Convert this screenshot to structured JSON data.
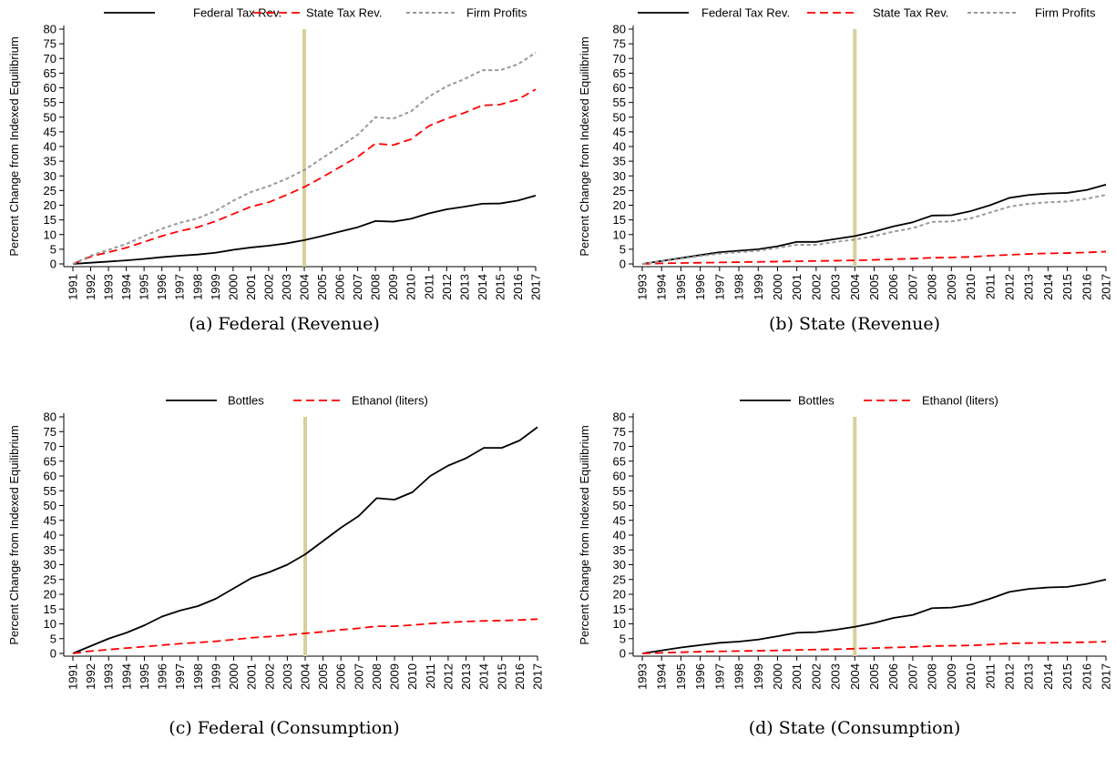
{
  "chart_data": [
    {
      "type": "line",
      "caption": "(a) Federal (Revenue)",
      "ylabel": "Percent Change from Indexed Equilibrium",
      "ylim": [
        0,
        80
      ],
      "yticks": [
        "0",
        "5",
        "10",
        "15",
        "20",
        "25",
        "30",
        "35",
        "40",
        "45",
        "50",
        "55",
        "60",
        "65",
        "70",
        "75",
        "80"
      ],
      "categories": [
        "1991",
        "1992",
        "1993",
        "1994",
        "1995",
        "1996",
        "1997",
        "1998",
        "1999",
        "2000",
        "2001",
        "2002",
        "2003",
        "2004",
        "2005",
        "2006",
        "2007",
        "2008",
        "2009",
        "2010",
        "2011",
        "2012",
        "2013",
        "2014",
        "2015",
        "2016",
        "2017"
      ],
      "vline": "2004",
      "legend_position": "top",
      "grid": false,
      "series": [
        {
          "name": "Federal Tax Rev.",
          "color": "#000000",
          "style": "solid",
          "values": [
            0,
            0.4,
            0.8,
            1.2,
            1.7,
            2.3,
            2.8,
            3.2,
            3.8,
            4.8,
            5.6,
            6.2,
            7.0,
            8.1,
            9.5,
            11.0,
            12.5,
            14.6,
            14.4,
            15.4,
            17.2,
            18.6,
            19.5,
            20.5,
            20.6,
            21.6,
            23.3
          ]
        },
        {
          "name": "State Tax Rev.",
          "color": "#ff0000",
          "style": "dashed",
          "values": [
            0,
            2.5,
            4.0,
            5.5,
            7.5,
            9.5,
            11.2,
            12.5,
            14.5,
            17.0,
            19.5,
            21.0,
            23.5,
            26.2,
            29.5,
            33.0,
            36.5,
            41.0,
            40.5,
            42.5,
            47.0,
            49.5,
            51.5,
            54.0,
            54.3,
            56.0,
            59.5
          ]
        },
        {
          "name": "Firm Profits",
          "color": "#999999",
          "style": "dotted",
          "values": [
            0,
            2.8,
            4.8,
            6.8,
            9.5,
            12.0,
            14.0,
            15.5,
            18.0,
            21.5,
            24.5,
            26.5,
            29.0,
            32.0,
            36.0,
            40.0,
            44.0,
            50.0,
            49.5,
            52.0,
            57.0,
            60.5,
            63.0,
            66.0,
            66.0,
            68.0,
            72.0
          ]
        }
      ]
    },
    {
      "type": "line",
      "caption": "(b) State (Revenue)",
      "ylabel": "Percent Change from Indexed Equilibrium",
      "ylim": [
        0,
        80
      ],
      "yticks": [
        "0",
        "5",
        "10",
        "15",
        "20",
        "25",
        "30",
        "35",
        "40",
        "45",
        "50",
        "55",
        "60",
        "65",
        "70",
        "75",
        "80"
      ],
      "categories": [
        "1993",
        "1994",
        "1995",
        "1996",
        "1997",
        "1998",
        "1999",
        "2000",
        "2001",
        "2002",
        "2003",
        "2004",
        "2005",
        "2006",
        "2007",
        "2008",
        "2009",
        "2010",
        "2011",
        "2012",
        "2013",
        "2014",
        "2015",
        "2016",
        "2017"
      ],
      "vline": "2004",
      "legend_position": "top",
      "grid": false,
      "series": [
        {
          "name": "Federal Tax Rev.",
          "color": "#000000",
          "style": "solid",
          "values": [
            0,
            1.0,
            2.0,
            3.0,
            4.0,
            4.5,
            5.0,
            6.0,
            7.5,
            7.5,
            8.5,
            9.5,
            11.0,
            12.8,
            14.2,
            16.5,
            16.6,
            18.0,
            20.0,
            22.5,
            23.5,
            24.0,
            24.2,
            25.2,
            27.0
          ]
        },
        {
          "name": "State Tax Rev.",
          "color": "#ff0000",
          "style": "dashed",
          "values": [
            0,
            0.2,
            0.3,
            0.4,
            0.5,
            0.6,
            0.7,
            0.8,
            0.9,
            1.0,
            1.1,
            1.2,
            1.4,
            1.6,
            1.8,
            2.1,
            2.2,
            2.4,
            2.8,
            3.1,
            3.4,
            3.6,
            3.7,
            3.9,
            4.2
          ]
        },
        {
          "name": "Firm Profits",
          "color": "#999999",
          "style": "dotted",
          "values": [
            0,
            0.9,
            1.8,
            2.7,
            3.5,
            4.0,
            4.5,
            5.5,
            6.5,
            6.5,
            7.5,
            8.3,
            9.5,
            11.0,
            12.2,
            14.3,
            14.5,
            15.5,
            17.5,
            19.5,
            20.5,
            21.0,
            21.3,
            22.2,
            23.5
          ]
        }
      ]
    },
    {
      "type": "line",
      "caption": "(c) Federal (Consumption)",
      "ylabel": "Percent Change from Indexed Equilibrium",
      "ylim": [
        0,
        80
      ],
      "yticks": [
        "0",
        "5",
        "10",
        "15",
        "20",
        "25",
        "30",
        "35",
        "40",
        "45",
        "50",
        "55",
        "60",
        "65",
        "70",
        "75",
        "80"
      ],
      "categories": [
        "1991",
        "1992",
        "1993",
        "1994",
        "1995",
        "1996",
        "1997",
        "1998",
        "1999",
        "2000",
        "2001",
        "2002",
        "2003",
        "2004",
        "2005",
        "2006",
        "2007",
        "2008",
        "2009",
        "2010",
        "2011",
        "2012",
        "2013",
        "2014",
        "2015",
        "2016",
        "2017"
      ],
      "vline": "2004",
      "legend_position": "top",
      "grid": false,
      "series": [
        {
          "name": "Bottles",
          "color": "#000000",
          "style": "solid",
          "values": [
            0,
            2.5,
            5.0,
            7.0,
            9.5,
            12.5,
            14.5,
            16.0,
            18.5,
            22.0,
            25.5,
            27.5,
            30.0,
            33.5,
            38.0,
            42.5,
            46.5,
            52.5,
            52.0,
            54.5,
            60.0,
            63.5,
            66.0,
            69.5,
            69.5,
            72.0,
            76.5
          ]
        },
        {
          "name": "Ethanol (liters)",
          "color": "#ff0000",
          "style": "dashed",
          "values": [
            0,
            0.8,
            1.3,
            1.8,
            2.3,
            2.8,
            3.3,
            3.7,
            4.1,
            4.7,
            5.3,
            5.7,
            6.2,
            6.8,
            7.3,
            8.0,
            8.5,
            9.2,
            9.2,
            9.6,
            10.1,
            10.5,
            10.8,
            11.0,
            11.1,
            11.3,
            11.6
          ]
        }
      ]
    },
    {
      "type": "line",
      "caption": "(d) State (Consumption)",
      "ylabel": "Percent Change from Indexed Equilibrium",
      "ylim": [
        0,
        80
      ],
      "yticks": [
        "0",
        "5",
        "10",
        "15",
        "20",
        "25",
        "30",
        "35",
        "40",
        "45",
        "50",
        "55",
        "60",
        "65",
        "70",
        "75",
        "80"
      ],
      "categories": [
        "1993",
        "1994",
        "1995",
        "1996",
        "1997",
        "1998",
        "1999",
        "2000",
        "2001",
        "2002",
        "2003",
        "2004",
        "2005",
        "2006",
        "2007",
        "2008",
        "2009",
        "2010",
        "2011",
        "2012",
        "2013",
        "2014",
        "2015",
        "2016",
        "2017"
      ],
      "vline": "2004",
      "legend_position": "top",
      "grid": false,
      "series": [
        {
          "name": "Bottles",
          "color": "#000000",
          "style": "solid",
          "values": [
            0,
            1.0,
            2.0,
            2.8,
            3.6,
            4.0,
            4.7,
            5.8,
            7.0,
            7.2,
            8.0,
            9.0,
            10.3,
            12.0,
            13.0,
            15.3,
            15.5,
            16.5,
            18.5,
            20.8,
            21.8,
            22.3,
            22.5,
            23.5,
            25.0
          ]
        },
        {
          "name": "Ethanol (liters)",
          "color": "#ff0000",
          "style": "dashed",
          "values": [
            0,
            0.2,
            0.4,
            0.6,
            0.7,
            0.8,
            0.9,
            1.0,
            1.2,
            1.3,
            1.4,
            1.6,
            1.8,
            2.0,
            2.2,
            2.5,
            2.6,
            2.7,
            3.0,
            3.4,
            3.5,
            3.6,
            3.7,
            3.8,
            4.0
          ]
        }
      ]
    }
  ]
}
